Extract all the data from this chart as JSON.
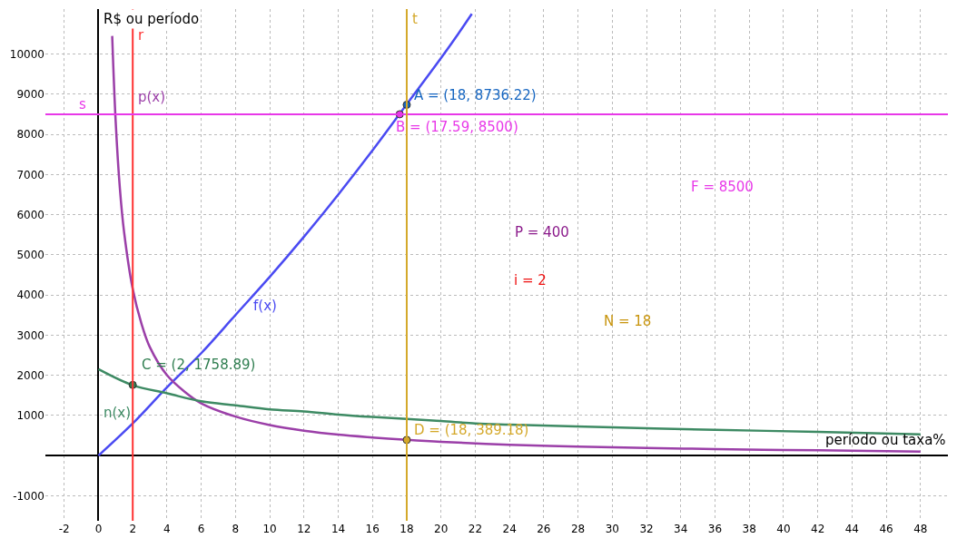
{
  "chart_data": {
    "type": "line",
    "xlabel": "período ou taxa%",
    "ylabel": "R$ ou período",
    "xlim": [
      -3.1,
      49.6
    ],
    "ylim": [
      -1625,
      11120
    ],
    "xticks": [
      -2,
      0,
      2,
      4,
      6,
      8,
      10,
      12,
      14,
      16,
      18,
      20,
      22,
      24,
      26,
      28,
      30,
      32,
      34,
      36,
      38,
      40,
      42,
      44,
      46,
      48
    ],
    "yticks": [
      -1000,
      1000,
      2000,
      3000,
      4000,
      5000,
      6000,
      7000,
      8000,
      9000,
      10000
    ],
    "grid": true,
    "legend": false,
    "series": [
      {
        "name": "f(x)",
        "color": "#4a4af2",
        "x": [
          0,
          2,
          4,
          6,
          8,
          10,
          12,
          14,
          16,
          18,
          20,
          21,
          21.8
        ],
        "values": [
          0,
          800,
          1700,
          2550,
          3500,
          4450,
          5450,
          6500,
          7600,
          8750,
          9900,
          10500,
          11000
        ]
      },
      {
        "name": "p(x)",
        "color": "#9b3fa8",
        "x": [
          0.8,
          1,
          1.25,
          1.5,
          2,
          2.5,
          3,
          4,
          5,
          6,
          8,
          10,
          12,
          14,
          16,
          18,
          20,
          24,
          28,
          32,
          36,
          40,
          44,
          48
        ],
        "values": [
          10450,
          8350,
          6650,
          5550,
          4150,
          3300,
          2700,
          2000,
          1600,
          1300,
          970,
          760,
          620,
          520,
          450,
          390,
          340,
          270,
          220,
          190,
          160,
          140,
          120,
          100
        ]
      },
      {
        "name": "n(x)",
        "color": "#3d8a63",
        "x": [
          0,
          2,
          4,
          6,
          8,
          10,
          12,
          14,
          16,
          18,
          20,
          22,
          24,
          30,
          36,
          42,
          48
        ],
        "values": [
          2150,
          1750,
          1550,
          1350,
          1250,
          1150,
          1100,
          1020,
          960,
          910,
          860,
          800,
          770,
          700,
          640,
          590,
          530
        ]
      }
    ],
    "ref_lines": [
      {
        "axis": "x",
        "value": 2,
        "label": "r",
        "color": "#ff3333"
      },
      {
        "axis": "y",
        "value": 8500,
        "label": "s",
        "color": "#e838e8"
      },
      {
        "axis": "x",
        "value": 18,
        "label": "t",
        "color": "#d4a82a"
      }
    ],
    "annotations": [
      {
        "text": "A = (18, 8736.22)",
        "x": 18,
        "y": 8736.22
      },
      {
        "text": "B = (17.59, 8500)",
        "x": 17.59,
        "y": 8500
      },
      {
        "text": "C = (2, 1758.89)",
        "x": 2,
        "y": 1758.89
      },
      {
        "text": "D = (18, 389.18)",
        "x": 18,
        "y": 389.18
      },
      "F = 8500",
      "P = 400",
      "i = 2",
      "N = 18"
    ]
  }
}
